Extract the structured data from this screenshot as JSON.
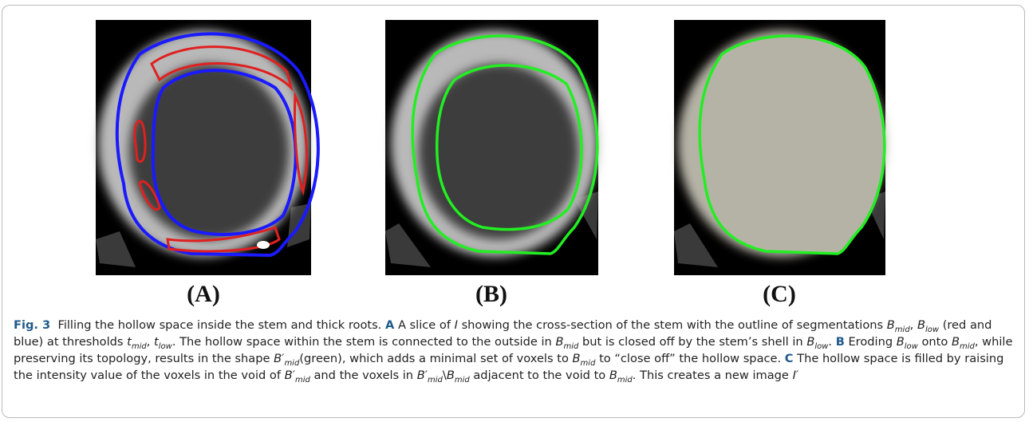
{
  "figure": {
    "panels": [
      {
        "label": "(A)"
      },
      {
        "label": "(B)"
      },
      {
        "label": "(C)"
      }
    ],
    "caption": [
      "Fig. 3",
      "Filling the hollow space inside the stem and thick roots.",
      "A",
      "A slice of",
      "I",
      "showing the cross-section of the stem with the outline of segmentations",
      "B",
      "mid",
      ",",
      "B",
      "low",
      "(red and blue) at thresholds",
      "t",
      "mid",
      ",",
      "t",
      "low",
      ". The hollow space within the stem is connected to the outside in",
      "B",
      "mid",
      "but is closed off by the stem’s shell in",
      "B",
      "low",
      ".",
      "B",
      "Eroding",
      "B",
      "low",
      "onto",
      "B",
      "mid",
      ", while preserving its topology, results in the shape",
      "B′",
      "mid",
      "(green), which adds a minimal set of voxels to",
      "B",
      "mid",
      "to “close off” the hollow space.",
      "C",
      "The hollow space is filled by raising the intensity value of the voxels in the void of",
      "B′",
      "mid",
      "and the voxels in",
      "B′",
      "mid",
      "\\",
      "B",
      "mid",
      "adjacent to the void to",
      "B",
      "mid",
      ". This creates a new image",
      "I′"
    ]
  }
}
